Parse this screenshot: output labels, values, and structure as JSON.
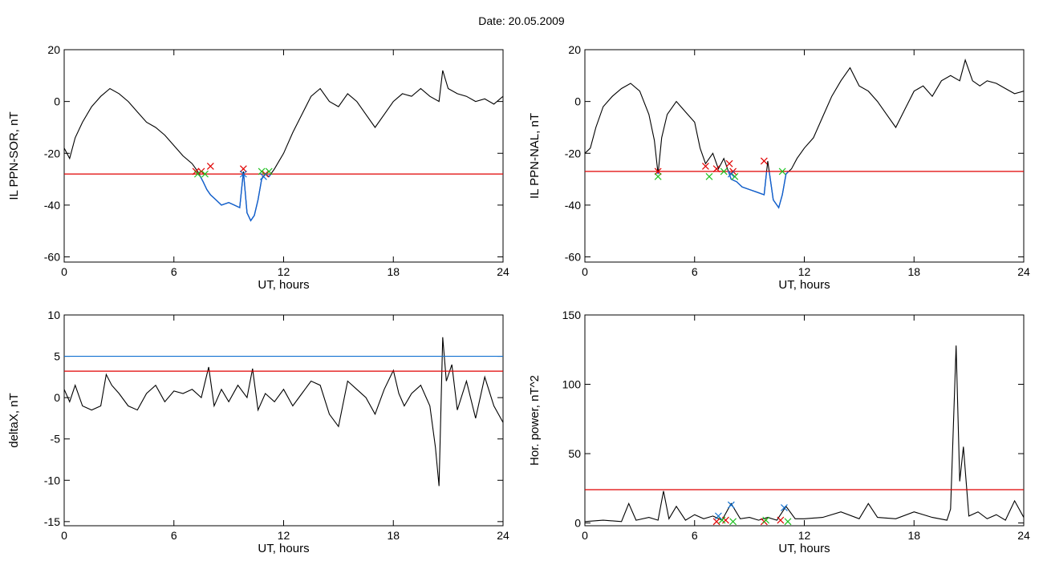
{
  "title": "Date:  20.05.2009",
  "colors": {
    "trace": "#000000",
    "threshold": "#e00000",
    "below": "#1060d0",
    "blue_line": "#1070d0",
    "marker_red": "#e00000",
    "marker_green": "#20c020",
    "marker_blue": "#1070d0"
  },
  "chart_data": [
    {
      "id": "il-ppn-sor",
      "type": "line",
      "xlabel": "UT, hours",
      "ylabel": "IL PPN-SOR, nT",
      "xlim": [
        0,
        24
      ],
      "ylim": [
        -62,
        20
      ],
      "xticks": [
        0,
        6,
        12,
        18,
        24
      ],
      "yticks": [
        -60,
        -40,
        -20,
        0,
        20
      ],
      "threshold": -28,
      "highlight_below_threshold": true,
      "series": [
        {
          "x": [
            0,
            0.3,
            0.6,
            1.0,
            1.5,
            2.0,
            2.5,
            3.0,
            3.5,
            4.0,
            4.5,
            5.0,
            5.5,
            6.0,
            6.5,
            7.0,
            7.3,
            7.6,
            7.8,
            8.0,
            8.3,
            8.6,
            9.0,
            9.3,
            9.6,
            9.8,
            10.0,
            10.2,
            10.4,
            10.6,
            10.8,
            11.0,
            11.2,
            11.5,
            12.0,
            12.5,
            13.0,
            13.5,
            14.0,
            14.5,
            15.0,
            15.5,
            16.0,
            16.5,
            17.0,
            17.5,
            18.0,
            18.5,
            19.0,
            19.5,
            20.0,
            20.5,
            20.7,
            21.0,
            21.5,
            22.0,
            22.5,
            23.0,
            23.5,
            24.0
          ],
          "y": [
            -18,
            -22,
            -14,
            -8,
            -2,
            2,
            5,
            3,
            0,
            -4,
            -8,
            -10,
            -13,
            -17,
            -21,
            -24,
            -27,
            -31,
            -34,
            -36,
            -38,
            -40,
            -39,
            -40,
            -41,
            -27,
            -43,
            -46,
            -44,
            -38,
            -30,
            -28,
            -29,
            -26,
            -20,
            -12,
            -5,
            2,
            5,
            0,
            -2,
            3,
            0,
            -5,
            -10,
            -5,
            0,
            3,
            2,
            5,
            2,
            0,
            12,
            5,
            3,
            2,
            0,
            1,
            -1,
            2
          ]
        }
      ],
      "markers": [
        {
          "x": 7.2,
          "y": -27,
          "color": "red"
        },
        {
          "x": 7.5,
          "y": -27,
          "color": "red"
        },
        {
          "x": 8.0,
          "y": -25,
          "color": "red"
        },
        {
          "x": 9.8,
          "y": -26,
          "color": "red"
        },
        {
          "x": 11.0,
          "y": -28,
          "color": "red"
        },
        {
          "x": 7.3,
          "y": -28,
          "color": "green"
        },
        {
          "x": 7.7,
          "y": -28,
          "color": "green"
        },
        {
          "x": 10.8,
          "y": -27,
          "color": "green"
        },
        {
          "x": 11.2,
          "y": -27,
          "color": "green"
        },
        {
          "x": 9.8,
          "y": -28,
          "color": "blue"
        },
        {
          "x": 10.9,
          "y": -29,
          "color": "blue"
        }
      ]
    },
    {
      "id": "il-ppn-nal",
      "type": "line",
      "xlabel": "UT, hours",
      "ylabel": "IL PPN-NAL, nT",
      "xlim": [
        0,
        24
      ],
      "ylim": [
        -62,
        20
      ],
      "xticks": [
        0,
        6,
        12,
        18,
        24
      ],
      "yticks": [
        -60,
        -40,
        -20,
        0,
        20
      ],
      "threshold": -27,
      "highlight_below_threshold": true,
      "series": [
        {
          "x": [
            0,
            0.3,
            0.6,
            1.0,
            1.5,
            2.0,
            2.5,
            3.0,
            3.5,
            3.8,
            4.0,
            4.2,
            4.5,
            5.0,
            5.5,
            6.0,
            6.3,
            6.6,
            7.0,
            7.3,
            7.6,
            8.0,
            8.3,
            8.6,
            9.0,
            9.4,
            9.8,
            10.0,
            10.3,
            10.6,
            10.8,
            11.0,
            11.3,
            11.6,
            12.0,
            12.5,
            13.0,
            13.5,
            14.0,
            14.5,
            15.0,
            15.5,
            16.0,
            16.5,
            17.0,
            17.5,
            18.0,
            18.5,
            19.0,
            19.5,
            20.0,
            20.5,
            20.8,
            21.2,
            21.6,
            22.0,
            22.5,
            23.0,
            23.5,
            24.0
          ],
          "y": [
            -20,
            -18,
            -10,
            -2,
            2,
            5,
            7,
            4,
            -5,
            -15,
            -28,
            -14,
            -5,
            0,
            -4,
            -8,
            -18,
            -24,
            -20,
            -26,
            -22,
            -30,
            -31,
            -33,
            -34,
            -35,
            -36,
            -23,
            -38,
            -41,
            -36,
            -28,
            -26,
            -22,
            -18,
            -14,
            -6,
            2,
            8,
            13,
            6,
            4,
            0,
            -5,
            -10,
            -3,
            4,
            6,
            2,
            8,
            10,
            8,
            16,
            8,
            6,
            8,
            7,
            5,
            3,
            4
          ]
        }
      ],
      "markers": [
        {
          "x": 4.0,
          "y": -27,
          "color": "red"
        },
        {
          "x": 6.6,
          "y": -25,
          "color": "red"
        },
        {
          "x": 7.2,
          "y": -26,
          "color": "red"
        },
        {
          "x": 7.9,
          "y": -24,
          "color": "red"
        },
        {
          "x": 8.1,
          "y": -27,
          "color": "red"
        },
        {
          "x": 9.8,
          "y": -23,
          "color": "red"
        },
        {
          "x": 4.0,
          "y": -29,
          "color": "green"
        },
        {
          "x": 6.8,
          "y": -29,
          "color": "green"
        },
        {
          "x": 7.6,
          "y": -27,
          "color": "green"
        },
        {
          "x": 8.2,
          "y": -29,
          "color": "green"
        },
        {
          "x": 10.8,
          "y": -27,
          "color": "green"
        },
        {
          "x": 8.0,
          "y": -28,
          "color": "blue"
        }
      ]
    },
    {
      "id": "delta-x",
      "type": "line",
      "xlabel": "UT, hours",
      "ylabel": "deltaX, nT",
      "xlim": [
        0,
        24
      ],
      "ylim": [
        -15.5,
        10
      ],
      "xticks": [
        0,
        6,
        12,
        18,
        24
      ],
      "yticks": [
        -15,
        -10,
        -5,
        0,
        5,
        10
      ],
      "threshold": 3.2,
      "second_threshold": 5.0,
      "highlight_below_threshold": false,
      "series": [
        {
          "x": [
            0,
            0.3,
            0.6,
            1.0,
            1.5,
            2.0,
            2.3,
            2.6,
            3.0,
            3.5,
            4.0,
            4.5,
            5.0,
            5.5,
            6.0,
            6.5,
            7.0,
            7.5,
            7.9,
            8.2,
            8.6,
            9.0,
            9.5,
            10.0,
            10.3,
            10.6,
            11.0,
            11.5,
            12.0,
            12.5,
            13.0,
            13.5,
            14.0,
            14.5,
            15.0,
            15.5,
            16.0,
            16.5,
            17.0,
            17.5,
            18.0,
            18.3,
            18.6,
            19.0,
            19.5,
            20.0,
            20.3,
            20.5,
            20.7,
            20.9,
            21.2,
            21.5,
            22.0,
            22.5,
            23.0,
            23.5,
            24.0
          ],
          "y": [
            1.0,
            -0.5,
            1.5,
            -1.0,
            -1.5,
            -1.0,
            2.8,
            1.5,
            0.5,
            -1.0,
            -1.5,
            0.5,
            1.5,
            -0.5,
            0.8,
            0.5,
            1.0,
            0.0,
            3.7,
            -1.0,
            1.0,
            -0.5,
            1.5,
            0.0,
            3.5,
            -1.5,
            0.5,
            -0.5,
            1.0,
            -1.0,
            0.5,
            2.0,
            1.5,
            -2.0,
            -3.5,
            2.0,
            1.0,
            0.0,
            -2.0,
            1.0,
            3.3,
            0.5,
            -1.0,
            0.5,
            1.5,
            -1.0,
            -6.0,
            -10.7,
            7.3,
            2.0,
            4.0,
            -1.5,
            2.0,
            -2.5,
            2.5,
            -1.0,
            -3.0
          ]
        }
      ],
      "markers": []
    },
    {
      "id": "hor-power",
      "type": "line",
      "xlabel": "UT, hours",
      "ylabel": "Hor. power, nT^2",
      "xlim": [
        0,
        24
      ],
      "ylim": [
        -2,
        150
      ],
      "xticks": [
        0,
        6,
        12,
        18,
        24
      ],
      "yticks": [
        0,
        50,
        100,
        150
      ],
      "threshold": 24,
      "highlight_below_threshold": false,
      "series": [
        {
          "x": [
            0,
            1.0,
            2.0,
            2.4,
            2.8,
            3.5,
            4.0,
            4.3,
            4.6,
            5.0,
            5.5,
            6.0,
            6.5,
            7.0,
            7.5,
            8.0,
            8.5,
            9.0,
            9.5,
            10.0,
            10.5,
            11.0,
            11.5,
            12.0,
            13.0,
            14.0,
            15.0,
            15.5,
            16.0,
            17.0,
            18.0,
            19.0,
            19.8,
            20.0,
            20.3,
            20.5,
            20.7,
            21.0,
            21.5,
            22.0,
            22.5,
            23.0,
            23.5,
            24.0
          ],
          "y": [
            1,
            2,
            1,
            14,
            2,
            4,
            2,
            23,
            3,
            12,
            2,
            6,
            3,
            5,
            2,
            14,
            3,
            4,
            2,
            4,
            2,
            12,
            3,
            3,
            4,
            8,
            3,
            14,
            4,
            3,
            8,
            4,
            2,
            10,
            128,
            30,
            55,
            5,
            8,
            3,
            6,
            2,
            16,
            4
          ]
        }
      ],
      "markers": [
        {
          "x": 7.2,
          "y": 1,
          "color": "red"
        },
        {
          "x": 7.7,
          "y": 2,
          "color": "red"
        },
        {
          "x": 9.8,
          "y": 1,
          "color": "red"
        },
        {
          "x": 10.7,
          "y": 2,
          "color": "red"
        },
        {
          "x": 7.5,
          "y": 2,
          "color": "green"
        },
        {
          "x": 8.1,
          "y": 1,
          "color": "green"
        },
        {
          "x": 9.9,
          "y": 2,
          "color": "green"
        },
        {
          "x": 11.1,
          "y": 1,
          "color": "green"
        },
        {
          "x": 7.3,
          "y": 5,
          "color": "blue"
        },
        {
          "x": 8.0,
          "y": 13,
          "color": "blue"
        },
        {
          "x": 10.9,
          "y": 11,
          "color": "blue"
        }
      ]
    }
  ]
}
